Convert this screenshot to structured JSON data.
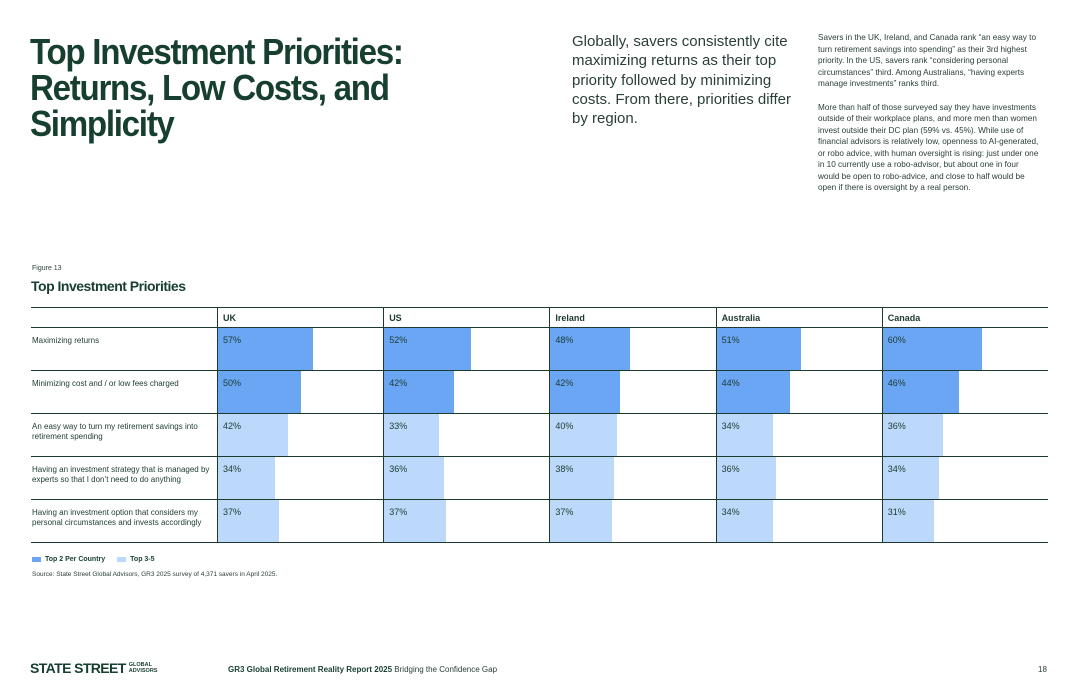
{
  "header": {
    "title_line1": "Top Investment Priorities:",
    "title_line2": "Returns, Low Costs, and Simplicity",
    "lead": "Globally, savers consistently cite maximizing returns as their top priority followed by minimizing costs. From there, priorities differ by region.",
    "side_p1": "Savers in the UK, Ireland, and Canada rank “an easy way to turn retirement savings into spending” as their 3rd highest priority. In the US, savers rank “considering personal circumstances” third. Among Australians, “having experts manage investments” ranks third.",
    "side_p2": "More than half of those surveyed say they have investments outside of their workplace plans, and more men than women invest outside their DC plan (59% vs. 45%). While use of financial advisors is relatively low, openness to AI-generated, or robo advice, with human oversight is rising: just under one in 10 currently use a robo-advisor, but about one in four would be open to robo-advice, and close to half would be open if there is oversight by a real person."
  },
  "figure": {
    "label": "Figure 13",
    "title": "Top Investment Priorities"
  },
  "colors": {
    "top2": "#6aa6f3",
    "top3_5": "#bcd8fb"
  },
  "chart_data": {
    "type": "table",
    "title": "Top Investment Priorities",
    "columns": [
      "UK",
      "US",
      "Ireland",
      "Australia",
      "Canada"
    ],
    "rows": [
      {
        "label": "Maximizing returns",
        "values": [
          57,
          52,
          48,
          51,
          60
        ],
        "top2": [
          true,
          true,
          true,
          true,
          true
        ]
      },
      {
        "label": "Minimizing cost and / or low fees charged",
        "values": [
          50,
          42,
          42,
          44,
          46
        ],
        "top2": [
          true,
          true,
          true,
          true,
          true
        ]
      },
      {
        "label": "An easy way to turn my retirement savings into retirement spending",
        "values": [
          42,
          33,
          40,
          34,
          36
        ],
        "top2": [
          false,
          false,
          false,
          false,
          false
        ]
      },
      {
        "label": "Having an investment strategy that is managed by experts so that I don’t need to do anything",
        "values": [
          34,
          36,
          38,
          36,
          34
        ],
        "top2": [
          false,
          false,
          false,
          false,
          false
        ]
      },
      {
        "label": "Having an investment option that considers my personal circumstances and invests accordingly",
        "values": [
          37,
          37,
          37,
          34,
          31
        ],
        "top2": [
          false,
          false,
          false,
          false,
          false
        ]
      }
    ],
    "value_suffix": "%",
    "legend": [
      "Top 2 Per Country",
      "Top 3-5"
    ]
  },
  "source": "Source: State Street Global Advisors, GR3 2025 survey of 4,371 savers in April 2025.",
  "footer": {
    "logo_main": "STATE STREET",
    "logo_sub1": "GLOBAL",
    "logo_sub2": "ADVISORS",
    "report_name": "GR3 Global Retirement Reality Report 2025",
    "report_subtitle": "Bridging the Confidence Gap",
    "page_number": "18"
  }
}
